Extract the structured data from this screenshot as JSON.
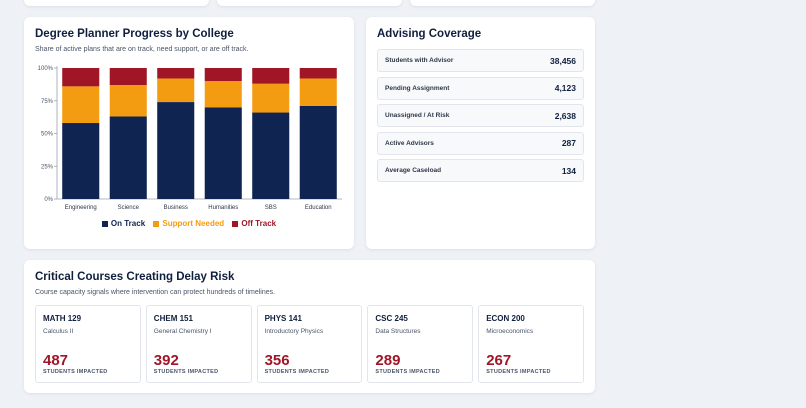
{
  "progress": {
    "title": "Degree Planner Progress by College",
    "subtitle": "Share of active plans that are on track, need support, or are off track.",
    "legend": [
      {
        "label": "On Track",
        "color": "#0f2450"
      },
      {
        "label": "Support Needed",
        "color": "#f39c12"
      },
      {
        "label": "Off Track",
        "color": "#a01627"
      }
    ]
  },
  "chart_data": {
    "type": "bar",
    "stacked": true,
    "categories": [
      "Engineering",
      "Science",
      "Business",
      "Humanities",
      "SBS",
      "Education"
    ],
    "series": [
      {
        "name": "On Track",
        "color": "#0f2450",
        "values": [
          58,
          63,
          74,
          70,
          66,
          71
        ]
      },
      {
        "name": "Support Needed",
        "color": "#f39c12",
        "values": [
          28,
          24,
          18,
          20,
          22,
          21
        ]
      },
      {
        "name": "Off Track",
        "color": "#a01627",
        "values": [
          14,
          13,
          8,
          10,
          12,
          8
        ]
      }
    ],
    "yticks": [
      "0%",
      "25%",
      "50%",
      "75%",
      "100%"
    ],
    "ylim": [
      0,
      100
    ],
    "grid": false,
    "legend_position": "bottom"
  },
  "advising": {
    "title": "Advising Coverage",
    "stats": [
      {
        "label": "Students with Advisor",
        "value": "38,456"
      },
      {
        "label": "Pending Assignment",
        "value": "4,123"
      },
      {
        "label": "Unassigned / At Risk",
        "value": "2,638"
      },
      {
        "label": "Active Advisors",
        "value": "287"
      },
      {
        "label": "Average Caseload",
        "value": "134"
      }
    ]
  },
  "courses": {
    "title": "Critical Courses Creating Delay Risk",
    "subtitle": "Course capacity signals where intervention can protect hundreds of timelines.",
    "items": [
      {
        "code": "MATH 129",
        "name": "Calculus II",
        "count": "487",
        "unit": "STUDENTS IMPACTED"
      },
      {
        "code": "CHEM 151",
        "name": "General Chemistry I",
        "count": "392",
        "unit": "STUDENTS IMPACTED"
      },
      {
        "code": "PHYS 141",
        "name": "Introductory Physics",
        "count": "356",
        "unit": "STUDENTS IMPACTED"
      },
      {
        "code": "CSC 245",
        "name": "Data Structures",
        "count": "289",
        "unit": "STUDENTS IMPACTED"
      },
      {
        "code": "ECON 200",
        "name": "Microeconomics",
        "count": "267",
        "unit": "STUDENTS IMPACTED"
      }
    ]
  }
}
